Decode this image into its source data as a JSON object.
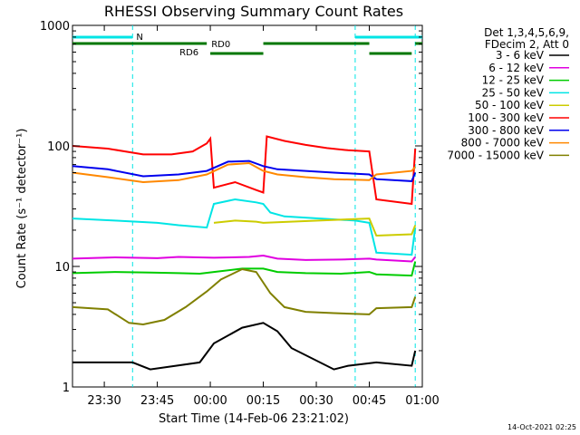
{
  "chart_data": {
    "type": "line",
    "title": "RHESSI Observing Summary Count Rates",
    "xlabel": "Start Time (14-Feb-06 23:21:02)",
    "ylabel": "Count Rate (s⁻¹ detector⁻¹)",
    "y_scale": "log",
    "ylim": [
      1,
      1000
    ],
    "xlim_minutes": [
      0,
      99
    ],
    "x_ticks": [
      {
        "label": "23:30",
        "minute": 9
      },
      {
        "label": "23:45",
        "minute": 24
      },
      {
        "label": "00:00",
        "minute": 39
      },
      {
        "label": "00:15",
        "minute": 54
      },
      {
        "label": "00:30",
        "minute": 69
      },
      {
        "label": "00:45",
        "minute": 84
      },
      {
        "label": "01:00",
        "minute": 99
      }
    ],
    "y_ticks": [
      {
        "label": "1000",
        "value": 1000
      },
      {
        "label": "100",
        "value": 100
      },
      {
        "label": "10",
        "value": 10
      },
      {
        "label": "1",
        "value": 1
      }
    ],
    "legend_header": [
      "Det 1,3,4,5,6,9,",
      "FDecim 2, Att 0"
    ],
    "grid": false,
    "legend_position": "right",
    "series": [
      {
        "name": "3 - 6 keV",
        "color": "#000000",
        "points": [
          [
            0,
            1.6
          ],
          [
            17,
            1.6
          ],
          [
            22,
            1.4
          ],
          [
            36,
            1.6
          ],
          [
            40,
            2.3
          ],
          [
            48,
            3.1
          ],
          [
            54,
            3.4
          ],
          [
            58,
            2.9
          ],
          [
            62,
            2.1
          ],
          [
            74,
            1.4
          ],
          [
            78,
            1.5
          ],
          [
            86,
            1.6
          ],
          [
            96,
            1.5
          ],
          [
            97,
            2.0
          ]
        ]
      },
      {
        "name": "6 - 12 keV",
        "color": "#e000e0",
        "points": [
          [
            0,
            11.6
          ],
          [
            12,
            11.9
          ],
          [
            24,
            11.7
          ],
          [
            30,
            12.0
          ],
          [
            40,
            11.8
          ],
          [
            50,
            12.0
          ],
          [
            54,
            12.3
          ],
          [
            58,
            11.6
          ],
          [
            66,
            11.3
          ],
          [
            76,
            11.4
          ],
          [
            84,
            11.6
          ],
          [
            86,
            11.4
          ],
          [
            96,
            11.0
          ],
          [
            97,
            12.0
          ]
        ]
      },
      {
        "name": "12 - 25 keV",
        "color": "#00cc00",
        "points": [
          [
            0,
            8.8
          ],
          [
            12,
            9.0
          ],
          [
            22,
            8.9
          ],
          [
            30,
            8.8
          ],
          [
            36,
            8.7
          ],
          [
            40,
            9.0
          ],
          [
            48,
            9.6
          ],
          [
            54,
            9.6
          ],
          [
            58,
            9.0
          ],
          [
            66,
            8.8
          ],
          [
            76,
            8.7
          ],
          [
            84,
            9.0
          ],
          [
            86,
            8.6
          ],
          [
            96,
            8.4
          ],
          [
            97,
            11.0
          ]
        ]
      },
      {
        "name": "25 - 50 keV",
        "color": "#00e5e5",
        "points": [
          [
            0,
            25
          ],
          [
            12,
            24
          ],
          [
            24,
            23
          ],
          [
            30,
            22
          ],
          [
            38,
            21
          ],
          [
            40,
            33
          ],
          [
            46,
            36
          ],
          [
            52,
            34
          ],
          [
            54,
            33
          ],
          [
            56,
            28
          ],
          [
            60,
            26
          ],
          [
            70,
            25
          ],
          [
            80,
            24
          ],
          [
            84,
            23
          ],
          [
            86,
            13
          ],
          [
            96,
            12.5
          ],
          [
            97,
            21
          ]
        ]
      },
      {
        "name": "50 - 100 keV",
        "color": "#cccc00",
        "points": [
          [
            84,
            25
          ],
          [
            86,
            18
          ],
          [
            96,
            18.5
          ],
          [
            97,
            22
          ],
          [
            40,
            23
          ],
          [
            46,
            24
          ],
          [
            52,
            23.5
          ],
          [
            54,
            23
          ]
        ]
      },
      {
        "name": "100 - 300 keV",
        "color": "#ff0000",
        "points": [
          [
            0,
            100
          ],
          [
            10,
            95
          ],
          [
            20,
            85
          ],
          [
            28,
            85
          ],
          [
            34,
            90
          ],
          [
            38,
            105
          ],
          [
            39,
            115
          ],
          [
            40,
            45
          ],
          [
            46,
            50
          ],
          [
            52,
            43
          ],
          [
            54,
            41
          ],
          [
            55,
            120
          ],
          [
            60,
            110
          ],
          [
            66,
            102
          ],
          [
            72,
            96
          ],
          [
            78,
            92
          ],
          [
            84,
            90
          ],
          [
            86,
            36
          ],
          [
            96,
            33
          ],
          [
            97,
            95
          ]
        ]
      },
      {
        "name": "300 - 800 keV",
        "color": "#0000ee",
        "points": [
          [
            0,
            68
          ],
          [
            10,
            64
          ],
          [
            20,
            56
          ],
          [
            30,
            58
          ],
          [
            38,
            62
          ],
          [
            44,
            74
          ],
          [
            50,
            75
          ],
          [
            54,
            68
          ],
          [
            58,
            64
          ],
          [
            66,
            62
          ],
          [
            74,
            60
          ],
          [
            84,
            58
          ],
          [
            86,
            53
          ],
          [
            96,
            51
          ],
          [
            97,
            60
          ]
        ]
      },
      {
        "name": "800 - 7000 keV",
        "color": "#ff8800",
        "points": [
          [
            0,
            60
          ],
          [
            10,
            55
          ],
          [
            20,
            50
          ],
          [
            30,
            52
          ],
          [
            38,
            58
          ],
          [
            44,
            70
          ],
          [
            50,
            72
          ],
          [
            54,
            62
          ],
          [
            58,
            58
          ],
          [
            66,
            55
          ],
          [
            74,
            53
          ],
          [
            84,
            52
          ],
          [
            86,
            58
          ],
          [
            96,
            62
          ],
          [
            97,
            67
          ]
        ]
      },
      {
        "name": "7000 - 15000 keV",
        "color": "#808000",
        "points": [
          [
            0,
            4.6
          ],
          [
            10,
            4.4
          ],
          [
            16,
            3.4
          ],
          [
            20,
            3.3
          ],
          [
            26,
            3.6
          ],
          [
            32,
            4.6
          ],
          [
            38,
            6.2
          ],
          [
            42,
            7.8
          ],
          [
            48,
            9.5
          ],
          [
            52,
            9.0
          ],
          [
            56,
            6.0
          ],
          [
            60,
            4.6
          ],
          [
            66,
            4.2
          ],
          [
            74,
            4.1
          ],
          [
            84,
            4.0
          ],
          [
            86,
            4.5
          ],
          [
            96,
            4.6
          ],
          [
            97,
            5.6
          ]
        ]
      }
    ],
    "annotations": [
      {
        "text": "N",
        "color": "#00e5e5",
        "x_minute": 19
      },
      {
        "text": "RD0",
        "color": "#007700",
        "x_minute": 42
      },
      {
        "text": "RD6",
        "color": "#007700",
        "x_minute": 33
      }
    ],
    "state_bars": [
      {
        "name": "night",
        "color": "#00e5e5",
        "segments": [
          [
            0,
            17
          ],
          [
            80,
            99
          ]
        ]
      },
      {
        "name": "RD0",
        "color": "#007700",
        "segments": [
          [
            0,
            38
          ],
          [
            54,
            84
          ],
          [
            97,
            99
          ]
        ]
      },
      {
        "name": "RD6",
        "color": "#007700",
        "segments": [
          [
            39,
            54
          ],
          [
            84,
            96
          ]
        ]
      }
    ],
    "vlines": [
      {
        "minute": 17,
        "color": "#00e5e5"
      },
      {
        "minute": 80,
        "color": "#00e5e5"
      },
      {
        "minute": 97,
        "color": "#00e5e5"
      }
    ],
    "timestamp": "14-Oct-2021 02:25"
  }
}
